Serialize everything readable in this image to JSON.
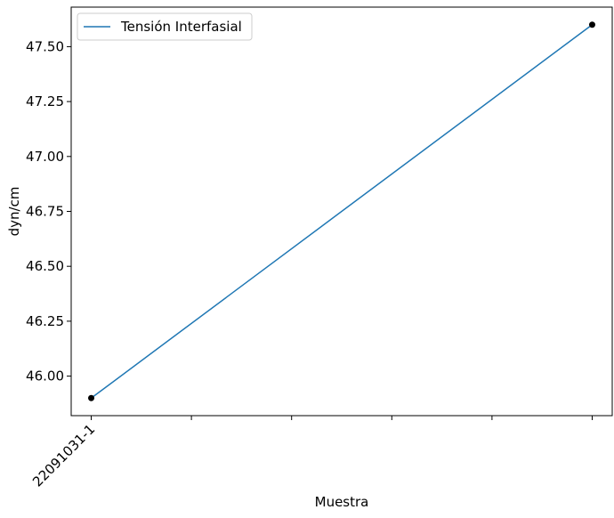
{
  "chart_data": {
    "type": "line",
    "title": "",
    "xlabel": "Muestra",
    "ylabel": "dyn/cm",
    "x_tick_labels": [
      {
        "label": "22091031-1",
        "index": 0
      },
      {
        "label": "",
        "index": 1
      },
      {
        "label": "",
        "index": 2
      },
      {
        "label": "",
        "index": 3
      },
      {
        "label": "",
        "index": 4
      },
      {
        "label": "",
        "index": 5
      }
    ],
    "xlim": [
      -0.2,
      5.2
    ],
    "ylim": [
      45.82,
      47.68
    ],
    "yticks": [
      "46.00",
      "46.25",
      "46.50",
      "46.75",
      "47.00",
      "47.25",
      "47.50"
    ],
    "series": [
      {
        "name": "Tensión Interfasial",
        "color": "#1f77b4",
        "marker_color": "#000000",
        "points": [
          {
            "x": 0,
            "y": 45.9
          },
          {
            "x": 5,
            "y": 47.6
          }
        ]
      }
    ],
    "grid": false,
    "legend_position": "upper-left"
  }
}
